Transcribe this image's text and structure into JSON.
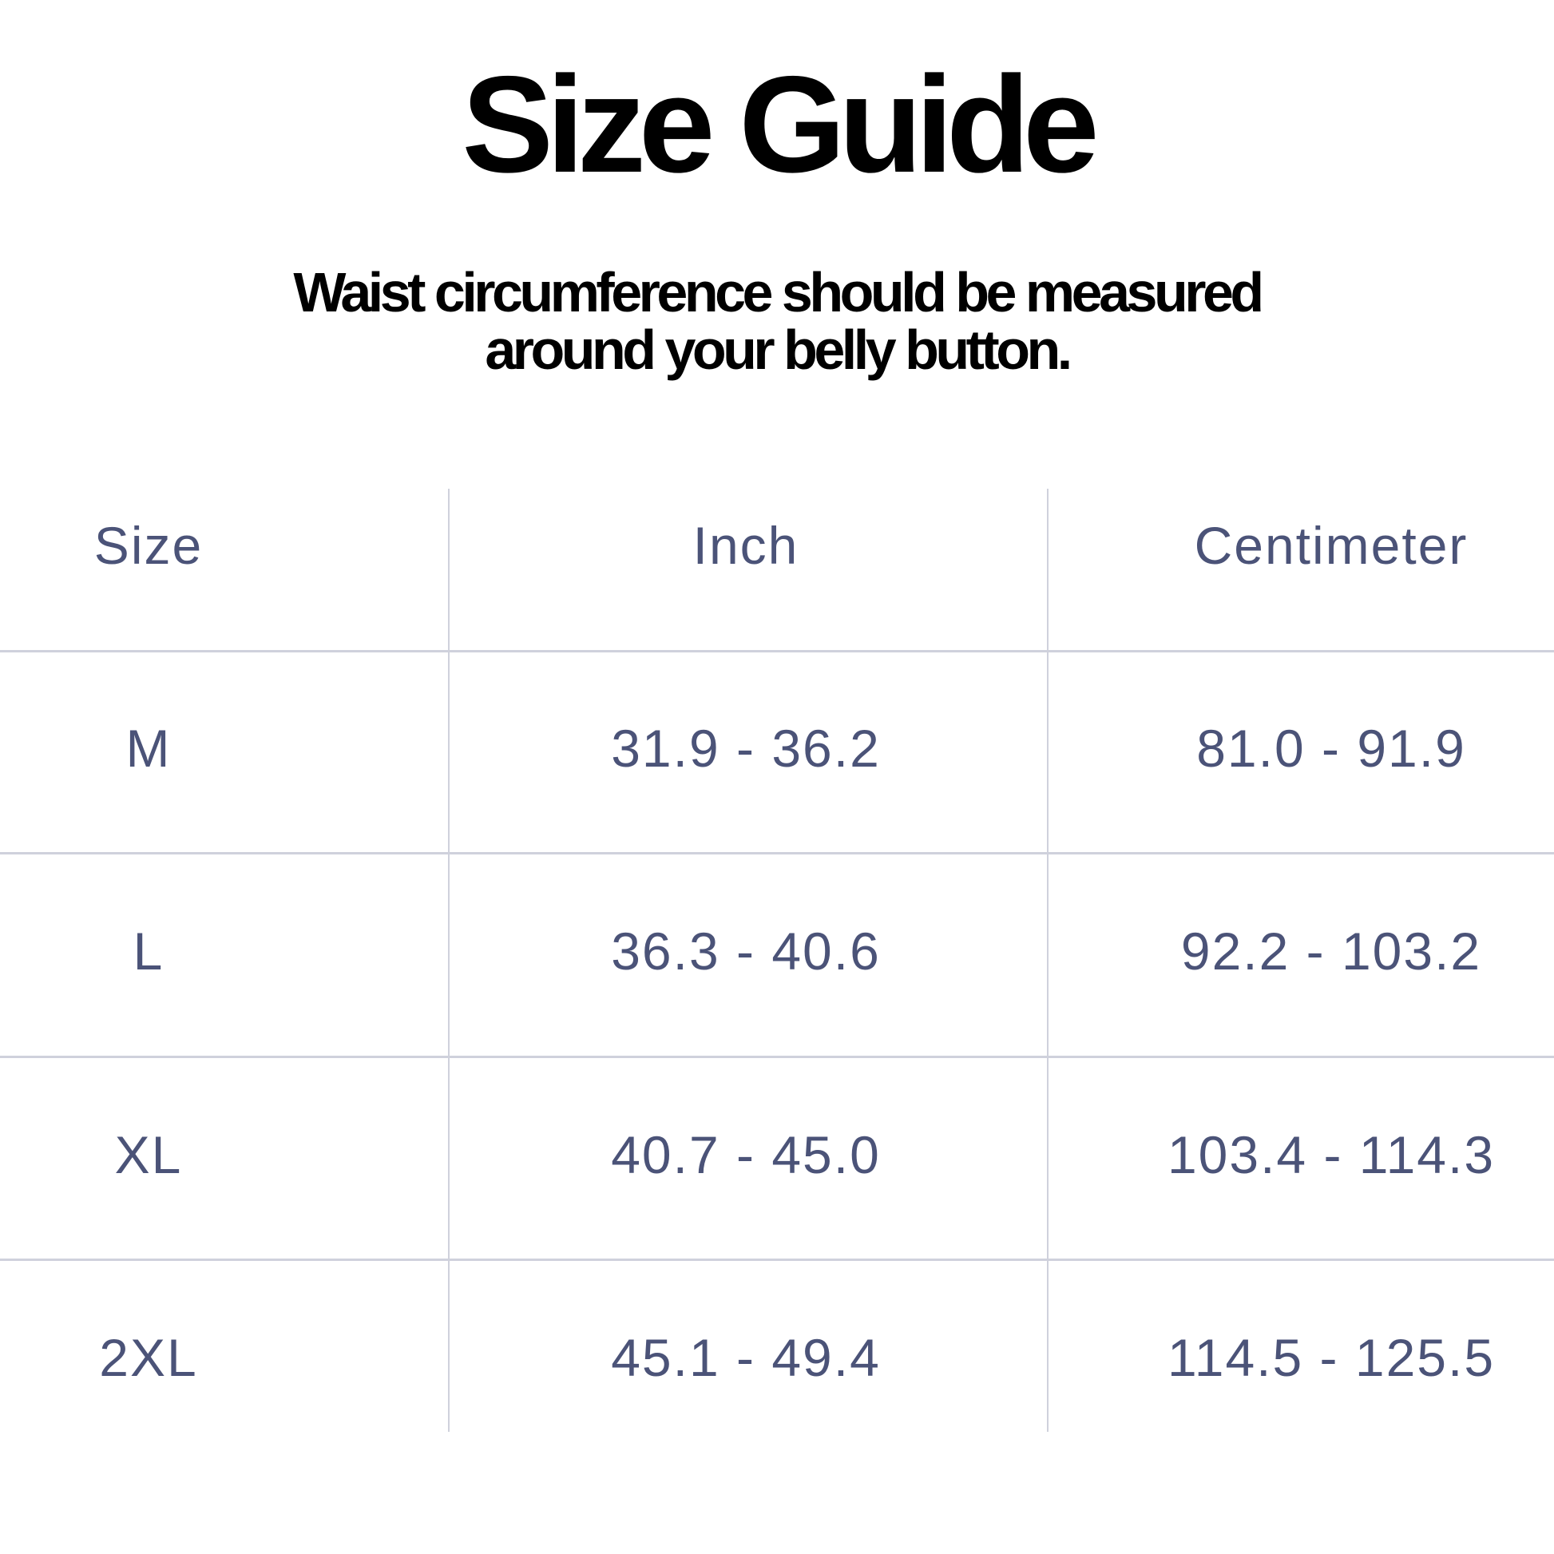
{
  "title": "Size Guide",
  "subtitle": {
    "line1": "Waist circumference should be measured",
    "line2": "around your belly button."
  },
  "table": {
    "headers": [
      "Size",
      "Inch",
      "Centimeter"
    ],
    "rows": [
      [
        "M",
        "31.9 - 36.2",
        "81.0 - 91.9"
      ],
      [
        "L",
        "36.3 - 40.6",
        "92.2 - 103.2"
      ],
      [
        "XL",
        "40.7 - 45.0",
        "103.4 - 114.3"
      ],
      [
        "2XL",
        "45.1 - 49.4",
        "114.5 - 125.5"
      ]
    ]
  },
  "colors": {
    "text": "#4b5378",
    "grid": "#cfd1dc"
  }
}
